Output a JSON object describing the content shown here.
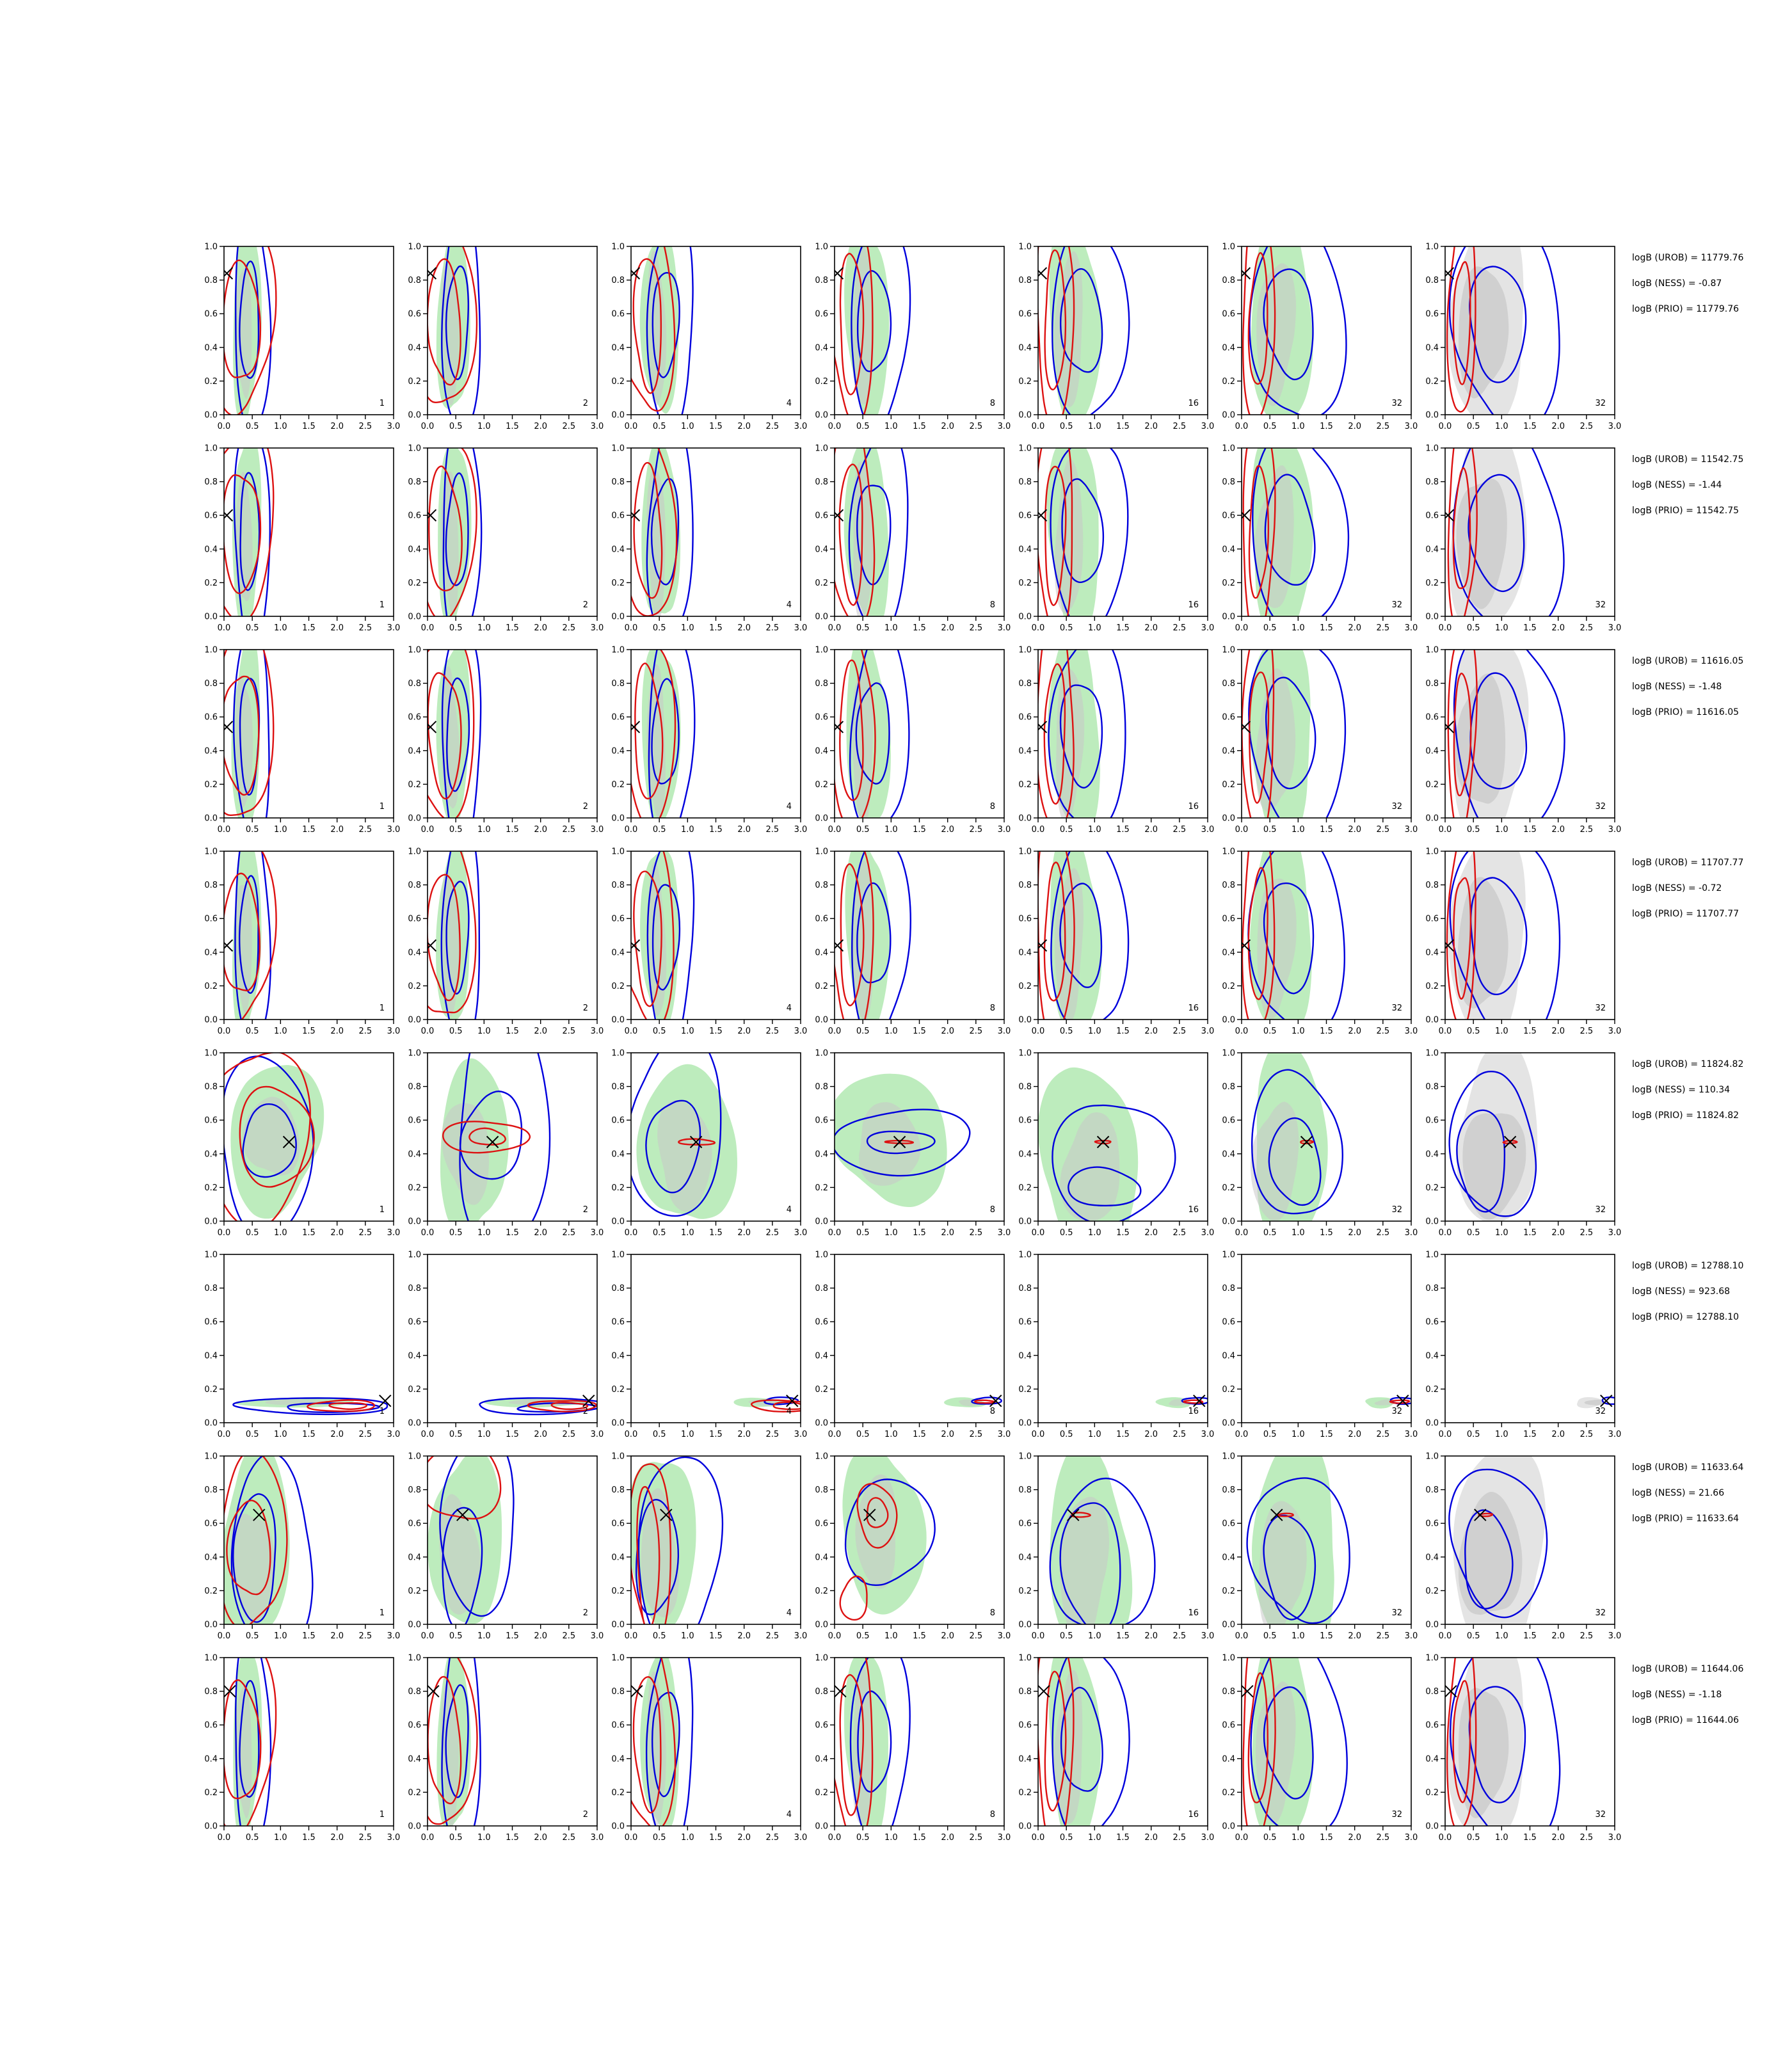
{
  "figure": {
    "rows": 8,
    "panels_per_row": 7,
    "panel_labels": [
      "1",
      "2",
      "4",
      "8",
      "16",
      "32",
      "32"
    ],
    "x_ticks": [
      "0.0",
      "0.5",
      "1.0",
      "1.5",
      "2.0",
      "2.5",
      "3.0"
    ],
    "y_ticks": [
      "0.0",
      "0.2",
      "0.4",
      "0.6",
      "0.8",
      "1.0"
    ],
    "colors": {
      "red": "#dd1111",
      "blue": "#0000dd",
      "green_fill": "#bdecbd",
      "gray_fill": "#c8c8c8",
      "light_gray_fill": "#e4e4e4",
      "marker": "#000000"
    }
  },
  "chart_data": {
    "type": "contour",
    "xlim": [
      0,
      3
    ],
    "ylim": [
      0,
      1
    ],
    "rows": [
      {
        "truth": [
          0.05,
          0.84
        ],
        "annotations": [
          "logB (UROB) = 11779.76",
          "logB (NESS) = -0.87",
          "logB (PRIO) = 11779.76"
        ]
      },
      {
        "truth": [
          0.05,
          0.6
        ],
        "annotations": [
          "logB (UROB) = 11542.75",
          "logB (NESS) = -1.44",
          "logB (PRIO) = 11542.75"
        ]
      },
      {
        "truth": [
          0.05,
          0.54
        ],
        "annotations": [
          "logB (UROB) = 11616.05",
          "logB (NESS) = -1.48",
          "logB (PRIO) = 11616.05"
        ]
      },
      {
        "truth": [
          0.05,
          0.44
        ],
        "annotations": [
          "logB (UROB) = 11707.77",
          "logB (NESS) = -0.72",
          "logB (PRIO) = 11707.77"
        ]
      },
      {
        "truth": [
          1.15,
          0.47
        ],
        "annotations": [
          "logB (UROB) = 11824.82",
          "logB (NESS) = 110.34",
          "logB (PRIO) = 11824.82"
        ]
      },
      {
        "truth": [
          2.85,
          0.13
        ],
        "annotations": [
          "logB (UROB) = 12788.10",
          "logB (NESS) = 923.68",
          "logB (PRIO) = 12788.10"
        ]
      },
      {
        "truth": [
          0.62,
          0.65
        ],
        "annotations": [
          "logB (UROB) = 11633.64",
          "logB (NESS) = 21.66",
          "logB (PRIO) = 11633.64"
        ]
      },
      {
        "truth": [
          0.1,
          0.8
        ],
        "annotations": [
          "logB (UROB) = 11644.06",
          "logB (NESS) = -1.18",
          "logB (PRIO) = 11644.06"
        ]
      }
    ]
  }
}
